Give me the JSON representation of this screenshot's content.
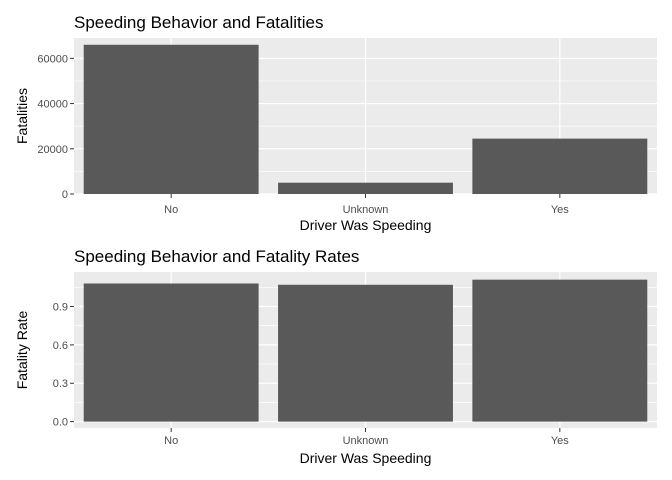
{
  "chart_data": [
    {
      "type": "bar",
      "title": "Speeding Behavior and Fatalities",
      "xlabel": "Driver Was Speeding",
      "ylabel": "Fatalities",
      "categories": [
        "No",
        "Unknown",
        "Yes"
      ],
      "values": [
        66000,
        5000,
        24500
      ],
      "ylim": [
        0,
        69000
      ],
      "yticks": [
        0,
        20000,
        40000,
        60000
      ],
      "ytick_labels": [
        "0",
        "20000",
        "40000",
        "60000"
      ],
      "grid": true,
      "bar_color": "#595959",
      "panel_color": "#ebebeb",
      "grid_color": "#ffffff"
    },
    {
      "type": "bar",
      "title": "Speeding Behavior and Fatality Rates",
      "xlabel": "Driver Was Speeding",
      "ylabel": "Fatality Rate",
      "categories": [
        "No",
        "Unknown",
        "Yes"
      ],
      "values": [
        1.08,
        1.07,
        1.11
      ],
      "ylim": [
        -0.05,
        1.17
      ],
      "yticks": [
        0,
        0.3,
        0.6,
        0.9
      ],
      "ytick_labels": [
        "0.0",
        "0.3",
        "0.6",
        "0.9"
      ],
      "grid": true,
      "bar_color": "#595959",
      "panel_color": "#ebebeb",
      "grid_color": "#ffffff"
    }
  ]
}
